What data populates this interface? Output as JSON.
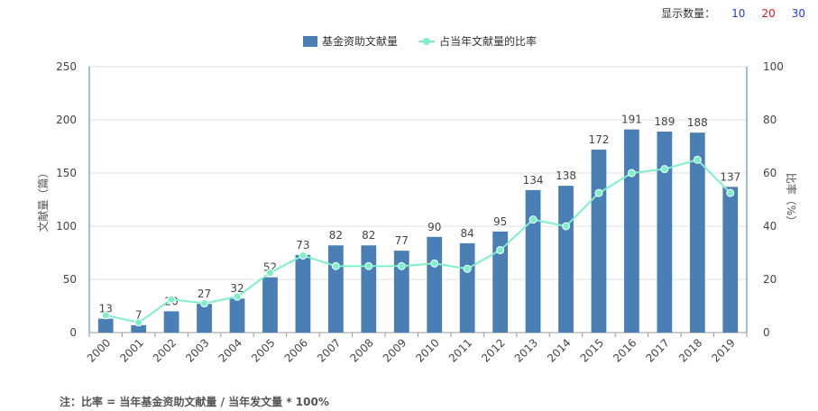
{
  "display_count": {
    "label": "显示数量：",
    "options": [
      {
        "label": "10",
        "color": "#1f3fd6"
      },
      {
        "label": "20",
        "color": "#e0161e"
      },
      {
        "label": "30",
        "color": "#1f3fd6"
      }
    ]
  },
  "note": "注：比率 = 当年基金资助文献量 / 当年发文量 * 100%",
  "colors": {
    "bar": "#4a7fb5",
    "line": "#7ef0c8",
    "axis_left": "#4a7fb5",
    "axis_right": "#4a7fb5",
    "grid": "#e0e0e0"
  },
  "chart_data": {
    "type": "bar",
    "categories": [
      "2000",
      "2001",
      "2002",
      "2003",
      "2004",
      "2005",
      "2006",
      "2007",
      "2008",
      "2009",
      "2010",
      "2011",
      "2012",
      "2013",
      "2014",
      "2015",
      "2016",
      "2017",
      "2018",
      "2019"
    ],
    "series": [
      {
        "name": "基金资助文献量",
        "type": "bar",
        "axis": "left",
        "values": [
          13,
          7,
          20,
          27,
          32,
          52,
          73,
          82,
          82,
          77,
          90,
          84,
          95,
          134,
          138,
          172,
          191,
          189,
          188,
          137
        ],
        "labels": [
          "13",
          "7",
          "20",
          "27",
          "32",
          "52",
          "73",
          "82",
          "82",
          "77",
          "90",
          "84",
          "95",
          "134",
          "138",
          "172",
          "191",
          "189",
          "188",
          "137"
        ]
      },
      {
        "name": "占当年文献量的比率",
        "type": "line",
        "axis": "right",
        "values": [
          6.5,
          3.8,
          12.5,
          11,
          13.5,
          22.5,
          29,
          25,
          25,
          25,
          26,
          24,
          31,
          42.5,
          40,
          52.5,
          60,
          61.5,
          65,
          52.5
        ]
      }
    ],
    "ylabel_left": "文献量（篇）",
    "ylabel_right": "比率（%）",
    "ylim_left": [
      0,
      250
    ],
    "ylim_right": [
      0,
      100
    ],
    "yticks_left": [
      "0",
      "50",
      "100",
      "150",
      "200",
      "250"
    ],
    "yticks_right": [
      "0",
      "20",
      "40",
      "60",
      "80",
      "100"
    ],
    "legend_position": "top-center",
    "grid": true
  }
}
